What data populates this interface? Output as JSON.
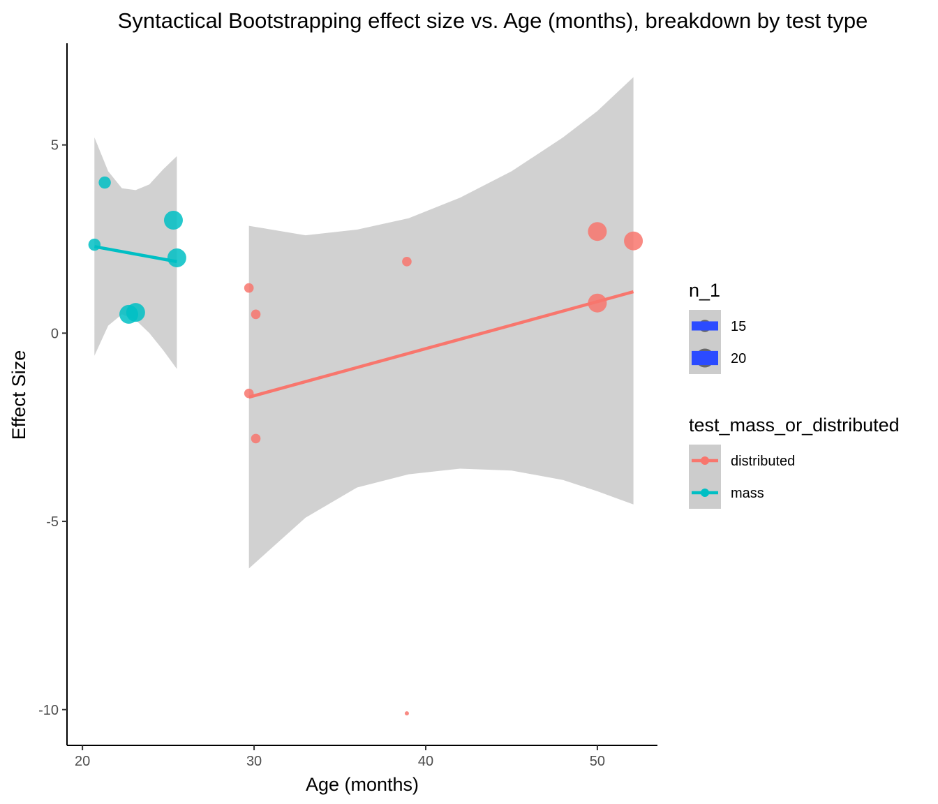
{
  "chart_data": {
    "type": "scatter",
    "title": "Syntactical Bootstrapping effect size vs. Age (months), breakdown by test type",
    "xlabel": "Age (months)",
    "ylabel": "Effect Size",
    "xlim": [
      19.1,
      53.5
    ],
    "ylim": [
      -10.95,
      7.7
    ],
    "x_ticks": [
      20,
      30,
      40,
      50
    ],
    "y_ticks": [
      5,
      0,
      -5,
      -10
    ],
    "x_tick_labels": [
      "20",
      "30",
      "40",
      "50"
    ],
    "y_tick_labels": [
      "5",
      "0",
      "-5",
      "-10"
    ],
    "grid": false,
    "legend_position": "right",
    "colors": {
      "distributed": "#f8766d",
      "mass": "#00bfc4",
      "ribbon": "#cccccc",
      "size_key": "#2b4bff"
    },
    "series": [
      {
        "name": "distributed",
        "color": "#f8766d",
        "points": [
          {
            "x": 29.7,
            "y": 1.2,
            "n": 13
          },
          {
            "x": 30.1,
            "y": 0.5,
            "n": 13
          },
          {
            "x": 29.7,
            "y": -1.6,
            "n": 13
          },
          {
            "x": 30.1,
            "y": -2.8,
            "n": 13
          },
          {
            "x": 38.9,
            "y": 1.9,
            "n": 13
          },
          {
            "x": 38.9,
            "y": -10.1,
            "n": 9
          },
          {
            "x": 50.0,
            "y": 2.7,
            "n": 20
          },
          {
            "x": 50.0,
            "y": 0.8,
            "n": 20
          },
          {
            "x": 52.1,
            "y": 2.45,
            "n": 20
          }
        ],
        "fit": {
          "x": [
            29.7,
            52.1
          ],
          "y": [
            -1.7,
            1.1
          ]
        },
        "ribbon": {
          "x": [
            29.7,
            33,
            36,
            39,
            42,
            45,
            48,
            50,
            52.1
          ],
          "upper": [
            2.85,
            2.6,
            2.75,
            3.05,
            3.6,
            4.3,
            5.2,
            5.9,
            6.8
          ],
          "lower": [
            -6.25,
            -4.9,
            -4.1,
            -3.75,
            -3.6,
            -3.65,
            -3.9,
            -4.2,
            -4.55
          ]
        }
      },
      {
        "name": "mass",
        "color": "#00bfc4",
        "points": [
          {
            "x": 21.3,
            "y": 4.0,
            "n": 15
          },
          {
            "x": 20.7,
            "y": 2.35,
            "n": 15
          },
          {
            "x": 25.3,
            "y": 3.0,
            "n": 20
          },
          {
            "x": 25.5,
            "y": 2.0,
            "n": 20
          },
          {
            "x": 22.7,
            "y": 0.5,
            "n": 20
          },
          {
            "x": 23.1,
            "y": 0.55,
            "n": 20
          }
        ],
        "fit": {
          "x": [
            20.7,
            25.5
          ],
          "y": [
            2.3,
            1.9
          ]
        },
        "ribbon": {
          "x": [
            20.7,
            21.5,
            22.3,
            23.1,
            23.9,
            24.7,
            25.5
          ],
          "upper": [
            5.2,
            4.3,
            3.85,
            3.8,
            3.95,
            4.35,
            4.7
          ],
          "lower": [
            -0.6,
            0.2,
            0.5,
            0.35,
            0.0,
            -0.45,
            -0.95
          ]
        }
      }
    ],
    "legend": {
      "size_title": "n_1",
      "size_items": [
        {
          "label": "15",
          "n": 15
        },
        {
          "label": "20",
          "n": 20
        }
      ],
      "color_title": "test_mass_or_distributed",
      "color_items": [
        {
          "label": "distributed",
          "color": "#f8766d"
        },
        {
          "label": "mass",
          "color": "#00bfc4"
        }
      ]
    }
  }
}
